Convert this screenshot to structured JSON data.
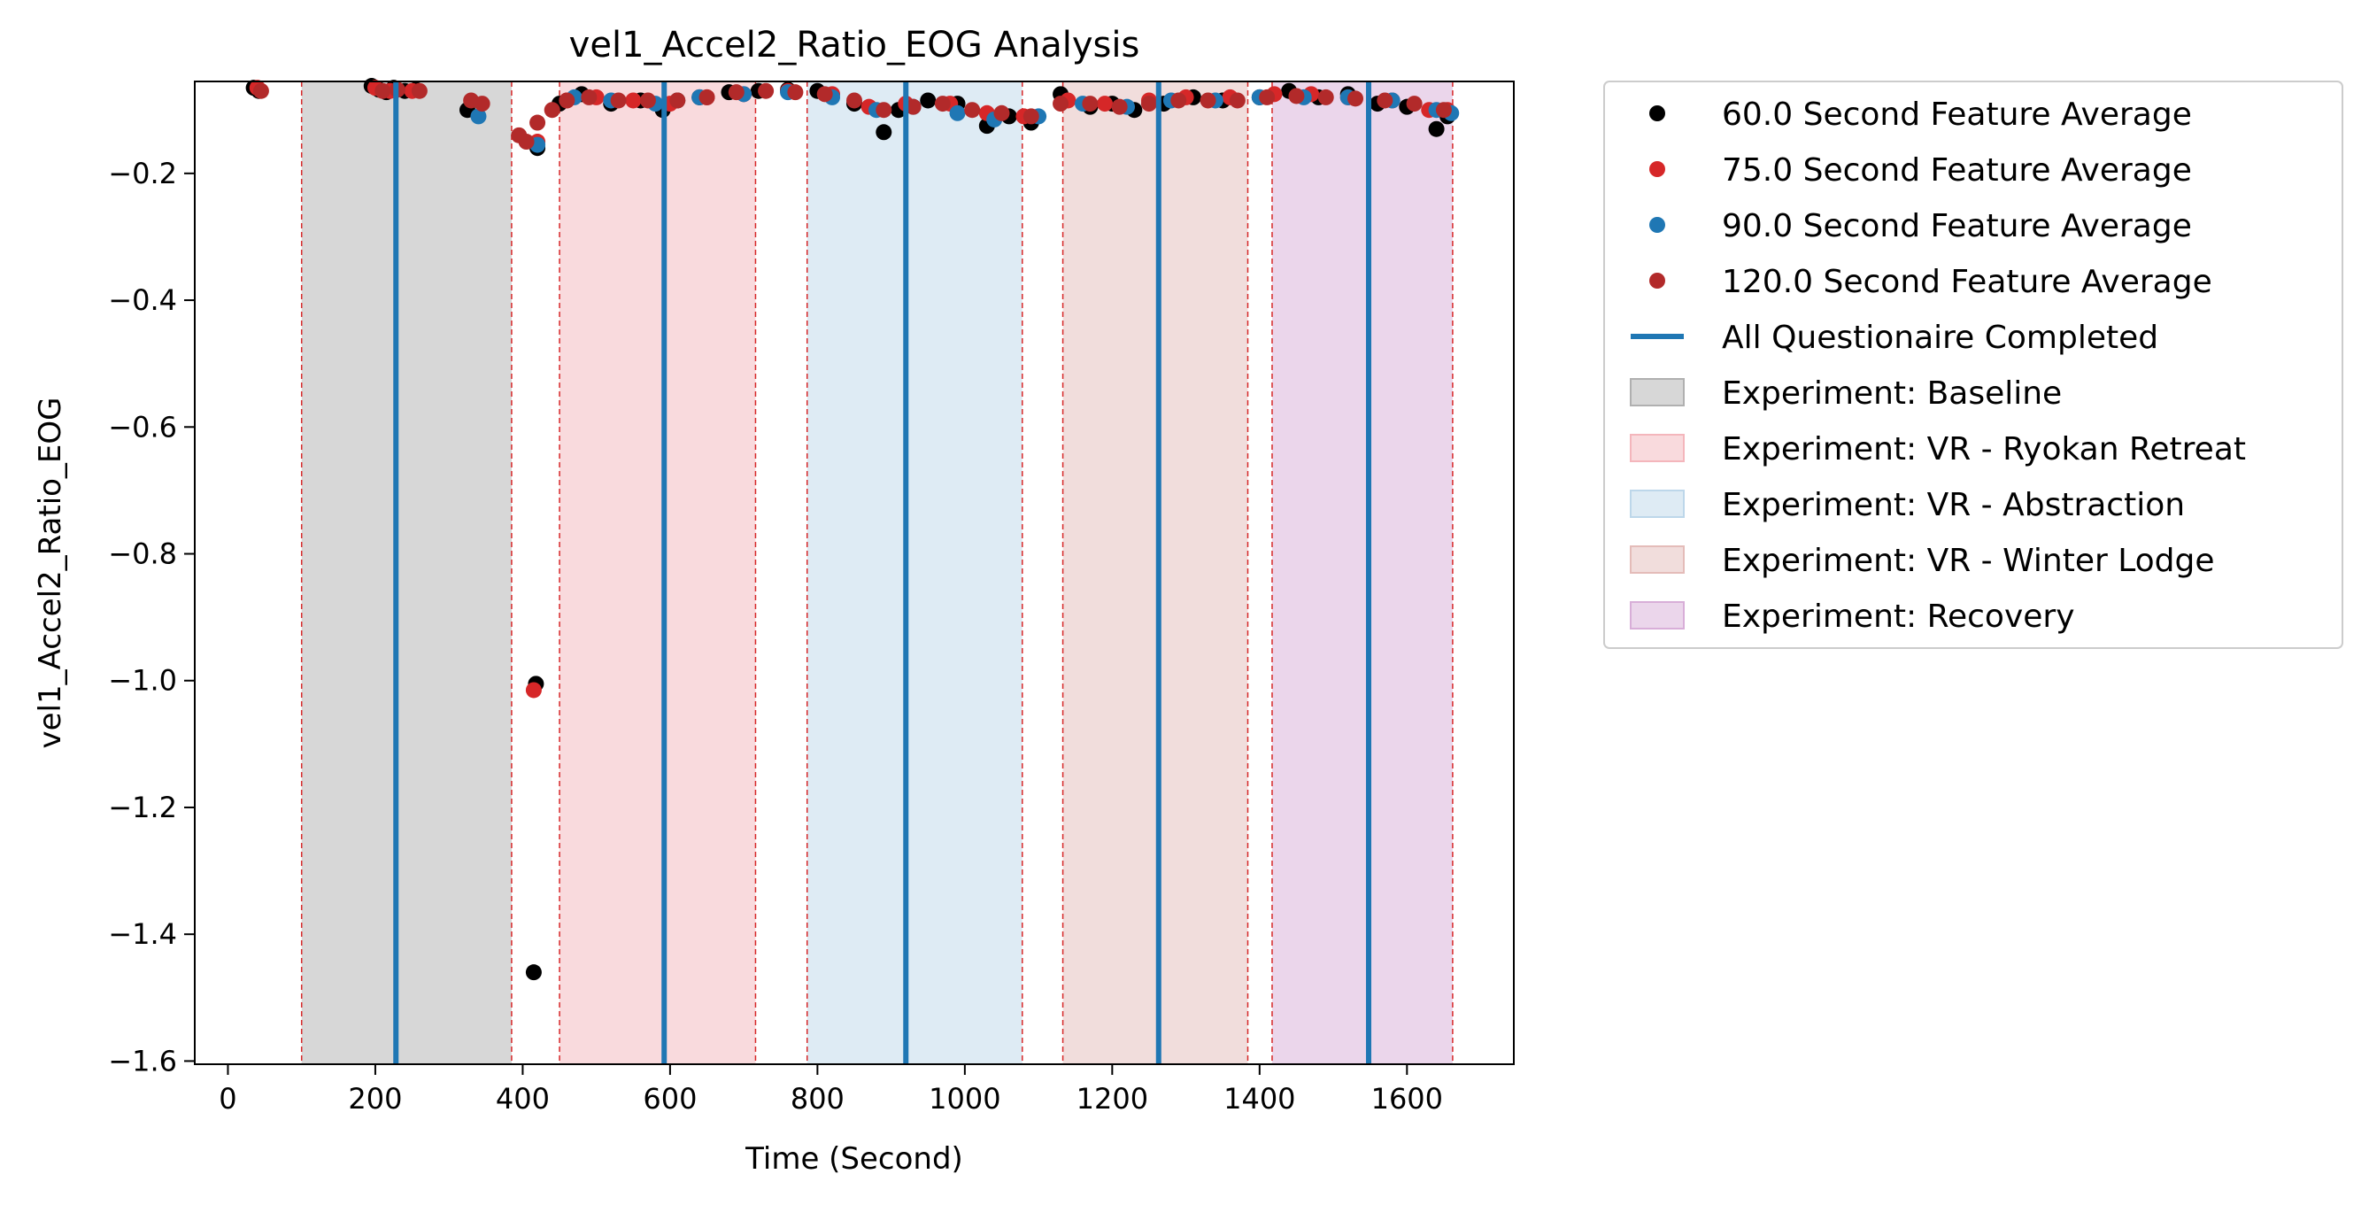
{
  "chart_data": {
    "type": "scatter",
    "title": "vel1_Accel2_Ratio_EOG Analysis",
    "xlabel": "Time (Second)",
    "ylabel": "vel1_Accel2_Ratio_EOG",
    "xlim": [
      -45,
      1745
    ],
    "ylim": [
      -1.605,
      -0.055
    ],
    "x_ticks": [
      0,
      200,
      400,
      600,
      800,
      1000,
      1200,
      1400,
      1600
    ],
    "y_ticks": [
      -0.2,
      -0.4,
      -0.6,
      -0.8,
      -1.0,
      -1.2,
      -1.4,
      -1.6
    ],
    "x_tick_labels": [
      "0",
      "200",
      "400",
      "600",
      "800",
      "1000",
      "1200",
      "1400",
      "1600"
    ],
    "y_tick_labels": [
      "−0.2",
      "−0.4",
      "−0.6",
      "−0.8",
      "−1.0",
      "−1.2",
      "−1.4",
      "−1.6"
    ],
    "grid": false,
    "legend_position": "outside-right-top",
    "series": [
      {
        "name": "60.0 Second Feature Average",
        "color": "#000000",
        "x": [
          35,
          42,
          195,
          205,
          215,
          225,
          240,
          255,
          325,
          415,
          418,
          420,
          450,
          480,
          520,
          560,
          590,
          610,
          640,
          680,
          720,
          760,
          800,
          850,
          890,
          910,
          950,
          990,
          1030,
          1060,
          1090,
          1130,
          1170,
          1200,
          1230,
          1270,
          1310,
          1350,
          1400,
          1440,
          1480,
          1520,
          1560,
          1600,
          1640,
          1655
        ],
        "y": [
          -0.065,
          -0.07,
          -0.062,
          -0.068,
          -0.072,
          -0.065,
          -0.07,
          -0.068,
          -0.1,
          -1.46,
          -1.005,
          -0.16,
          -0.09,
          -0.075,
          -0.09,
          -0.085,
          -0.1,
          -0.085,
          -0.08,
          -0.072,
          -0.07,
          -0.068,
          -0.07,
          -0.09,
          -0.135,
          -0.1,
          -0.085,
          -0.09,
          -0.125,
          -0.11,
          -0.12,
          -0.075,
          -0.095,
          -0.09,
          -0.1,
          -0.09,
          -0.08,
          -0.085,
          -0.08,
          -0.07,
          -0.08,
          -0.075,
          -0.09,
          -0.095,
          -0.13,
          -0.11
        ]
      },
      {
        "name": "75.0 Second Feature Average",
        "color": "#d62728",
        "x": [
          40,
          200,
          220,
          250,
          415,
          420,
          460,
          500,
          550,
          600,
          650,
          700,
          760,
          820,
          870,
          920,
          980,
          1030,
          1080,
          1140,
          1190,
          1250,
          1300,
          1360,
          1420,
          1470,
          1520,
          1580,
          1630,
          1655
        ],
        "y": [
          -0.065,
          -0.065,
          -0.07,
          -0.07,
          -1.015,
          -0.15,
          -0.085,
          -0.08,
          -0.085,
          -0.09,
          -0.08,
          -0.075,
          -0.07,
          -0.075,
          -0.095,
          -0.09,
          -0.09,
          -0.105,
          -0.11,
          -0.085,
          -0.09,
          -0.085,
          -0.08,
          -0.08,
          -0.075,
          -0.075,
          -0.08,
          -0.085,
          -0.1,
          -0.1
        ]
      },
      {
        "name": "90.0 Second Feature Average",
        "color": "#1f77b4",
        "x": [
          340,
          420,
          470,
          520,
          580,
          640,
          700,
          760,
          820,
          880,
          930,
          990,
          1040,
          1100,
          1160,
          1220,
          1280,
          1340,
          1400,
          1460,
          1520,
          1580,
          1640,
          1660
        ],
        "y": [
          -0.11,
          -0.155,
          -0.08,
          -0.085,
          -0.09,
          -0.08,
          -0.075,
          -0.072,
          -0.08,
          -0.1,
          -0.095,
          -0.105,
          -0.115,
          -0.11,
          -0.09,
          -0.095,
          -0.085,
          -0.085,
          -0.08,
          -0.08,
          -0.08,
          -0.085,
          -0.1,
          -0.105
        ]
      },
      {
        "name": "120.0 Second Feature Average",
        "color": "#b22a2a",
        "x": [
          45,
          210,
          230,
          260,
          330,
          345,
          395,
          405,
          420,
          440,
          460,
          490,
          530,
          570,
          610,
          650,
          690,
          730,
          770,
          810,
          850,
          890,
          930,
          970,
          1010,
          1050,
          1090,
          1130,
          1170,
          1210,
          1250,
          1290,
          1330,
          1370,
          1410,
          1450,
          1490,
          1530,
          1570,
          1610,
          1650
        ],
        "y": [
          -0.07,
          -0.07,
          -0.068,
          -0.07,
          -0.085,
          -0.09,
          -0.14,
          -0.15,
          -0.12,
          -0.1,
          -0.085,
          -0.08,
          -0.085,
          -0.085,
          -0.085,
          -0.08,
          -0.072,
          -0.07,
          -0.072,
          -0.075,
          -0.085,
          -0.1,
          -0.095,
          -0.09,
          -0.1,
          -0.105,
          -0.11,
          -0.09,
          -0.09,
          -0.095,
          -0.09,
          -0.085,
          -0.085,
          -0.085,
          -0.08,
          -0.078,
          -0.08,
          -0.082,
          -0.085,
          -0.09,
          -0.1
        ]
      }
    ],
    "vlines": {
      "name": "All Questionaire Completed",
      "color": "#1f77b4",
      "x": [
        228,
        592,
        920,
        1263,
        1548
      ]
    },
    "spans": [
      {
        "name": "Experiment: Baseline",
        "start": 100,
        "end": 385,
        "color": "#b0b0b0"
      },
      {
        "name": "Experiment: VR - Ryokan Retreat",
        "start": 450,
        "end": 716,
        "color": "#f4b6bc"
      },
      {
        "name": "Experiment: VR - Abstraction",
        "start": 786,
        "end": 1078,
        "color": "#bdd7ea"
      },
      {
        "name": "Experiment: VR - Winter Lodge",
        "start": 1133,
        "end": 1384,
        "color": "#e4bcb9"
      },
      {
        "name": "Experiment: Recovery",
        "start": 1417,
        "end": 1662,
        "color": "#d8aed8"
      }
    ],
    "span_edge_color": "#d62728"
  }
}
